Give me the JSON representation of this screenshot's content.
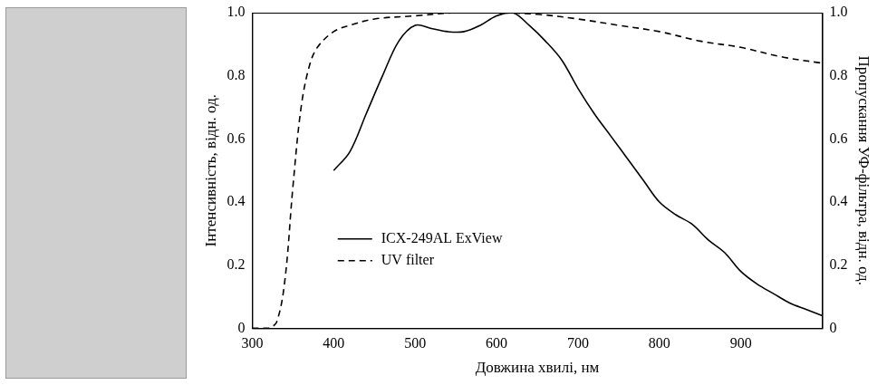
{
  "chart_data": {
    "type": "line",
    "x_label": "Довжина хвилі, нм",
    "y_label": "Інтенсивність, відн. од.",
    "y2_label": "Пропускання УФ-фільтра, відн. од.",
    "xlim": [
      300,
      1000
    ],
    "xticks": [
      300,
      400,
      500,
      600,
      700,
      800,
      900
    ],
    "ylim": [
      0,
      1
    ],
    "yticks": [
      0,
      {
        "value": 0.2,
        "label": "0.2"
      },
      {
        "value": 0.4,
        "label": "0.4"
      },
      {
        "value": 0.6,
        "label": "0.6"
      },
      {
        "value": 0.8,
        "label": "0.8"
      },
      {
        "value": 1,
        "label": "1.0"
      }
    ],
    "y2lim": [
      0,
      1
    ],
    "y2ticks": [
      0,
      {
        "value": 0.2,
        "label": "0.2"
      },
      {
        "value": 0.4,
        "label": "0.4"
      },
      {
        "value": 0.6,
        "label": "0.6"
      },
      {
        "value": 0.8,
        "label": "0.8"
      },
      {
        "value": 1,
        "label": "1.0"
      }
    ],
    "grid": false,
    "legend": "lower left",
    "series": [
      {
        "name": "ICX-249AL ExView",
        "color": "#000000",
        "line_style": "solid",
        "x": [
          400,
          420,
          440,
          460,
          480,
          500,
          520,
          540,
          560,
          580,
          600,
          620,
          640,
          660,
          680,
          700,
          720,
          740,
          760,
          780,
          800,
          820,
          840,
          860,
          880,
          900,
          920,
          940,
          960,
          980,
          1000
        ],
        "values": [
          0.5,
          0.56,
          0.68,
          0.8,
          0.91,
          0.96,
          0.95,
          0.94,
          0.94,
          0.96,
          0.99,
          1.0,
          0.96,
          0.91,
          0.85,
          0.76,
          0.68,
          0.61,
          0.54,
          0.47,
          0.4,
          0.36,
          0.33,
          0.28,
          0.24,
          0.18,
          0.14,
          0.11,
          0.08,
          0.06,
          0.04
        ]
      },
      {
        "name": "UV filter",
        "color": "#000000",
        "line_style": "dashed",
        "axis": "y2",
        "x": [
          300,
          310,
          320,
          330,
          340,
          350,
          360,
          370,
          380,
          400,
          420,
          450,
          500,
          550,
          600,
          650,
          700,
          750,
          800,
          850,
          900,
          950,
          1000
        ],
        "values": [
          0,
          0,
          0,
          0.02,
          0.15,
          0.45,
          0.7,
          0.83,
          0.89,
          0.94,
          0.96,
          0.98,
          0.99,
          1.0,
          1.0,
          0.995,
          0.98,
          0.96,
          0.94,
          0.91,
          0.89,
          0.86,
          0.84
        ]
      }
    ]
  }
}
